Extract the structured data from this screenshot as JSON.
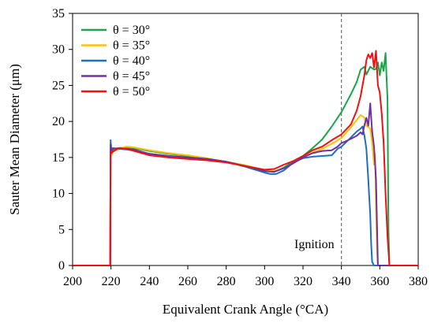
{
  "chart_data": {
    "type": "line",
    "xlabel": "Equivalent Crank Angle  (°CA)",
    "ylabel": "Sauter Mean Diameter  (μm)",
    "xlim": [
      200,
      380
    ],
    "ylim": [
      0,
      35
    ],
    "xticks": [
      200,
      220,
      240,
      260,
      280,
      300,
      320,
      340,
      360,
      380
    ],
    "yticks": [
      0,
      5,
      10,
      15,
      20,
      25,
      30,
      35
    ],
    "grid": false,
    "legend_position": "top-left",
    "annotations": [
      {
        "text": "Ignition",
        "x": 340,
        "style": "dashed-vertical-line"
      }
    ],
    "series": [
      {
        "name": "θ = 30°",
        "color": "#1aa54a",
        "x": [
          200,
          219.6,
          219.8,
          220.2,
          221,
          224,
          228,
          232,
          240,
          250,
          260,
          270,
          280,
          290,
          300,
          305,
          310,
          315,
          320,
          325,
          330,
          335,
          340,
          345,
          348,
          350,
          352,
          353,
          355,
          357,
          358,
          359,
          360,
          361,
          362,
          363,
          364,
          364.5,
          365,
          380
        ],
        "y": [
          0,
          0,
          16.8,
          15.6,
          15.9,
          16.3,
          16.4,
          16.3,
          15.9,
          15.5,
          15.2,
          14.8,
          14.4,
          13.9,
          13.2,
          13.0,
          13.6,
          14.5,
          15.2,
          16.3,
          17.5,
          19.3,
          21.3,
          23.8,
          25.5,
          27.2,
          27.6,
          26.5,
          27.6,
          27.2,
          27.3,
          28.2,
          26.4,
          28.2,
          27.0,
          29.5,
          23.0,
          5.0,
          0,
          0
        ]
      },
      {
        "name": "θ = 35°",
        "color": "#ffc000",
        "x": [
          200,
          219.6,
          219.8,
          220.2,
          221,
          224,
          228,
          232,
          240,
          250,
          260,
          270,
          280,
          290,
          300,
          305,
          310,
          315,
          320,
          325,
          330,
          335,
          340,
          345,
          348,
          350,
          352,
          353,
          355,
          356,
          357,
          357.5,
          358,
          358.6,
          359,
          380
        ],
        "y": [
          0,
          0,
          16.5,
          15.3,
          15.8,
          16.2,
          16.5,
          16.4,
          16.0,
          15.6,
          15.3,
          14.9,
          14.4,
          13.9,
          13.2,
          13.1,
          13.5,
          14.2,
          15.1,
          15.7,
          16.2,
          16.9,
          17.7,
          19.2,
          20.2,
          20.9,
          20.5,
          19.4,
          19.0,
          17.0,
          14.0,
          15.5,
          8.0,
          2.0,
          0,
          0
        ]
      },
      {
        "name": "θ = 40°",
        "color": "#1f6fbf",
        "x": [
          200,
          219.6,
          219.8,
          220.2,
          221,
          224,
          228,
          232,
          240,
          250,
          260,
          270,
          280,
          290,
          300,
          303,
          306,
          310,
          315,
          320,
          325,
          330,
          335,
          338,
          340,
          342,
          345,
          348,
          350,
          351,
          352,
          353,
          354,
          355,
          355.5,
          356,
          357,
          380
        ],
        "y": [
          0,
          0,
          17.4,
          16.0,
          16.3,
          16.2,
          16.1,
          16.0,
          15.5,
          15.2,
          15.0,
          14.8,
          14.4,
          13.7,
          12.9,
          12.7,
          12.7,
          13.2,
          14.3,
          14.9,
          15.1,
          15.2,
          15.3,
          16.2,
          16.5,
          17.0,
          17.8,
          18.6,
          19.0,
          19.3,
          18.0,
          16.2,
          12.0,
          7.0,
          3.0,
          0.5,
          0,
          0
        ]
      },
      {
        "name": "θ = 45°",
        "color": "#7030a0",
        "x": [
          200,
          219.6,
          219.8,
          220.2,
          221,
          224,
          228,
          232,
          240,
          250,
          260,
          270,
          280,
          290,
          300,
          305,
          310,
          315,
          320,
          325,
          330,
          335,
          338,
          340,
          342,
          345,
          348,
          350,
          351,
          352,
          353,
          354,
          355,
          356,
          357,
          358,
          359,
          380
        ],
        "y": [
          0,
          0,
          16.8,
          15.8,
          16.2,
          16.3,
          16.2,
          16.1,
          15.5,
          15.2,
          15.0,
          14.8,
          14.4,
          13.8,
          13.1,
          13.0,
          13.5,
          14.2,
          15.0,
          15.6,
          15.9,
          16.0,
          16.5,
          17.0,
          17.2,
          17.6,
          18.0,
          18.5,
          18.2,
          19.5,
          20.5,
          19.4,
          22.5,
          18.6,
          16.5,
          12.0,
          0,
          0
        ]
      },
      {
        "name": "θ = 50°",
        "color": "#ee1111",
        "x": [
          200,
          219.6,
          219.8,
          220.2,
          221,
          224,
          228,
          232,
          240,
          250,
          260,
          270,
          280,
          290,
          300,
          305,
          310,
          315,
          320,
          325,
          330,
          335,
          340,
          345,
          348,
          350,
          352,
          353,
          354,
          355,
          356,
          357,
          358,
          359,
          360,
          361,
          362,
          363,
          364,
          365,
          380
        ],
        "y": [
          0,
          0,
          15.8,
          15.6,
          15.8,
          16.3,
          16.2,
          15.9,
          15.3,
          15.0,
          14.8,
          14.6,
          14.3,
          13.8,
          13.3,
          13.4,
          14.0,
          14.5,
          15.2,
          16.0,
          16.5,
          17.4,
          18.2,
          19.6,
          21.5,
          23.5,
          26.5,
          28.5,
          29.3,
          28.8,
          29.5,
          27.5,
          29.8,
          25.0,
          24.0,
          21.0,
          17.0,
          10.0,
          4.0,
          0,
          0
        ]
      }
    ]
  }
}
